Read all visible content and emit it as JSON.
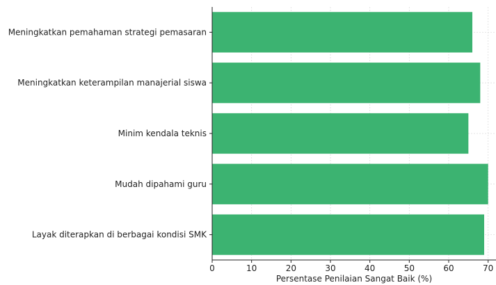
{
  "chart_data": {
    "type": "bar",
    "orientation": "horizontal",
    "categories": [
      "Meningkatkan pemahaman strategi pemasaran",
      "Meningkatkan keterampilan manajerial siswa",
      "Minim kendala teknis",
      "Mudah dipahami guru",
      "Layak diterapkan di berbagai kondisi SMK"
    ],
    "values": [
      66,
      68,
      65,
      70,
      69
    ],
    "title": "",
    "xlabel": "Persentase Penilaian Sangat Baik (%)",
    "ylabel": "",
    "xlim": [
      0,
      72
    ],
    "xticks": [
      0,
      10,
      20,
      30,
      40,
      50,
      60,
      70
    ],
    "grid": true,
    "bar_color": "#3cb371"
  }
}
